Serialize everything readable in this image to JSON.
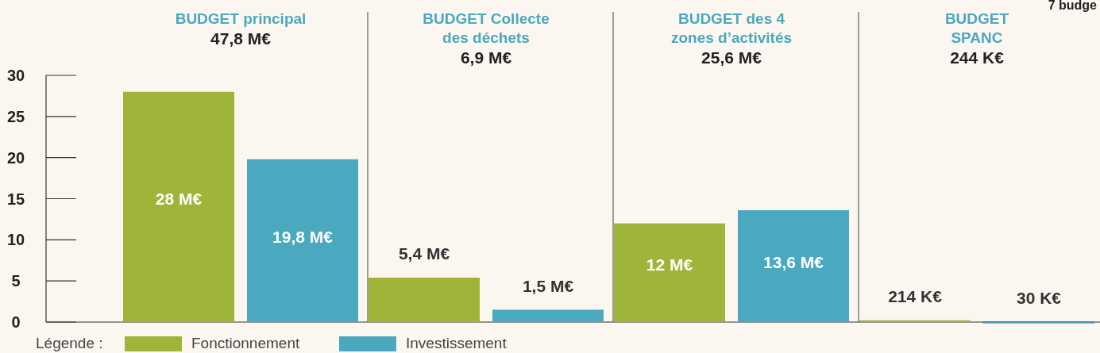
{
  "chart_data": {
    "type": "bar",
    "categories": [
      "BUDGET principal",
      "BUDGET Collecte\ndes déchets",
      "BUDGET des 4\nzones d’activités",
      "BUDGET\nSPANC"
    ],
    "series": [
      {
        "name": "Fonctionnement",
        "color": "#a0b43a",
        "values": [
          28,
          5.4,
          12,
          0.214
        ],
        "value_labels": [
          "28 M€",
          "5,4 M€",
          "12 M€",
          "214 K€"
        ]
      },
      {
        "name": "Investissement",
        "color": "#4aa8bf",
        "values": [
          19.8,
          1.5,
          13.6,
          0.03
        ],
        "value_labels": [
          "19,8 M€",
          "1,5 M€",
          "13,6 M€",
          "30 K€"
        ]
      }
    ],
    "ylim": [
      0,
      30
    ],
    "yticks": [
      0,
      5,
      10,
      15,
      20,
      25,
      30
    ],
    "legend": "bottom",
    "legend_title": "Légende :",
    "annotations": [
      "47,8 M€",
      "6,9 M€",
      "25,6 M€",
      "244 K€",
      "7 budge"
    ]
  }
}
